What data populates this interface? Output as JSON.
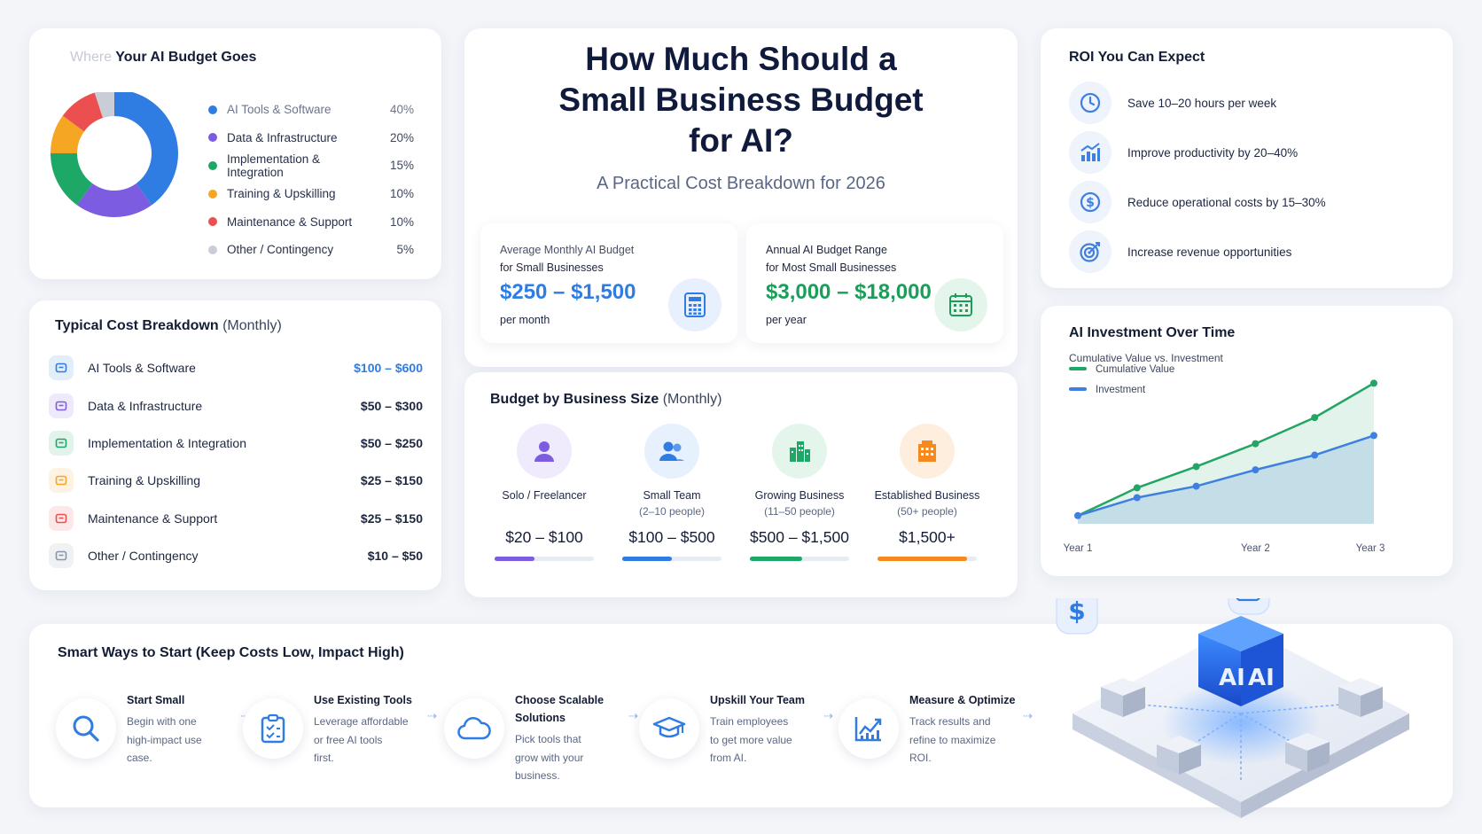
{
  "donut_card": {
    "title_faded": "Where",
    "title": "Your AI Budget Goes"
  },
  "cost_card": {
    "title": "Typical Cost Breakdown",
    "title_suffix": "(Monthly)",
    "rows": [
      {
        "label": "AI Tools & Software",
        "value": "$100 – $600",
        "icon": "toolbox-icon",
        "color": "#2f7ce3"
      },
      {
        "label": "Data & Infrastructure",
        "value": "$50 – $300",
        "icon": "database-icon",
        "color": "#7c5ce0"
      },
      {
        "label": "Implementation & Integration",
        "value": "$50 – $250",
        "icon": "gear-icon",
        "color": "#1ea868"
      },
      {
        "label": "Training & Upskilling",
        "value": "$25 – $150",
        "icon": "lightbulb-icon",
        "color": "#f5a623"
      },
      {
        "label": "Maintenance & Support",
        "value": "$25 – $150",
        "icon": "wrench-icon",
        "color": "#ec4f4f"
      },
      {
        "label": "Other / Contingency",
        "value": "$10 – $50",
        "icon": "bag-icon",
        "color": "#8a93a8"
      }
    ]
  },
  "hero": {
    "title_line1": "How Much Should a",
    "title_line2": "Small Business Budget",
    "title_line3": "for AI?",
    "subtitle": "A Practical Cost Breakdown for 2026",
    "monthly": {
      "label1": "Average Monthly AI Budget",
      "label2": "for Small Businesses",
      "amount": "$250 – $1,500",
      "unit": "per month",
      "icon": "calculator-icon"
    },
    "annual": {
      "label1": "Annual AI Budget Range",
      "label2": "for Most Small Businesses",
      "amount": "$3,000 – $18,000",
      "unit": "per year",
      "icon": "calendar-icon"
    }
  },
  "size_card": {
    "title": "Budget by Business Size",
    "title_suffix": "(Monthly)",
    "sizes": [
      {
        "name": "Solo / Freelancer",
        "sub": "",
        "price": "$20 – $100",
        "fill": 0.4,
        "color": "#7c5ce0",
        "bg": "#efeafc",
        "icon": "person-icon"
      },
      {
        "name": "Small Team",
        "sub": "(2–10 people)",
        "price": "$100 – $500",
        "fill": 0.5,
        "color": "#2f7ce3",
        "bg": "#e7f0fd",
        "icon": "people-icon"
      },
      {
        "name": "Growing Business",
        "sub": "(11–50 people)",
        "price": "$500 – $1,500",
        "fill": 0.53,
        "color": "#1ea868",
        "bg": "#e4f6ec",
        "icon": "buildings-icon"
      },
      {
        "name": "Established Business",
        "sub": "(50+ people)",
        "price": "$1,500+",
        "fill": 0.9,
        "color": "#f5891f",
        "bg": "#fdeede",
        "icon": "office-icon"
      }
    ]
  },
  "roi_card": {
    "title": "ROI You Can Expect",
    "items": [
      {
        "text": "Save 10–20 hours per week",
        "icon": "clock-icon"
      },
      {
        "text": "Improve productivity by 20–40%",
        "icon": "bar-growth-icon"
      },
      {
        "text": "Reduce operational costs by 15–30%",
        "icon": "dollar-icon"
      },
      {
        "text": "Increase revenue opportunities",
        "icon": "target-icon"
      }
    ]
  },
  "line_card": {
    "title": "AI Investment Over Time",
    "subtitle": "Cumulative Value vs. Investment"
  },
  "ways_card": {
    "title": "Smart Ways to Start (Keep Costs Low, Impact High)",
    "steps": [
      {
        "title": "Start Small",
        "desc": [
          "Begin with one",
          "high-impact use",
          "case."
        ],
        "icon": "search-icon"
      },
      {
        "title": "Use Existing Tools",
        "desc": [
          "Leverage affordable",
          "or free AI tools",
          "first."
        ],
        "icon": "clipboard-icon"
      },
      {
        "title": "Choose Scalable Solutions",
        "desc": [
          "Pick tools that",
          "grow with your",
          "business."
        ],
        "icon": "cloud-icon"
      },
      {
        "title": "Upskill Your Team",
        "desc": [
          "Train employees",
          "to get more value",
          "from AI."
        ],
        "icon": "graduation-cap-icon"
      },
      {
        "title": "Measure & Optimize",
        "desc": [
          "Track results and",
          "refine to maximize",
          "ROI."
        ],
        "icon": "line-growth-icon"
      }
    ]
  },
  "illustration": {
    "cube_label": "AI"
  },
  "chart_data": [
    {
      "type": "pie",
      "title": "Where Your AI Budget Goes",
      "categories": [
        "AI Tools & Software",
        "Data & Infrastructure",
        "Implementation & Integration",
        "Training & Upskilling",
        "Maintenance & Support",
        "Other / Contingency"
      ],
      "values": [
        40,
        20,
        15,
        10,
        10,
        5
      ],
      "labels": [
        "40%",
        "20%",
        "15%",
        "10%",
        "10%",
        "5%"
      ],
      "colors": [
        "#2f7ce3",
        "#7c5ce0",
        "#1ea868",
        "#f5a623",
        "#ec4f4f",
        "#c8cdd8"
      ],
      "legend": "right"
    },
    {
      "type": "line",
      "title": "AI Investment Over Time",
      "subtitle": "Cumulative Value vs. Investment",
      "x": [
        "Year 1",
        "",
        "",
        "Year 2",
        "",
        "Year 3"
      ],
      "series": [
        {
          "name": "Cumulative Value",
          "values": [
            0.5,
            2.2,
            3.5,
            4.9,
            6.5,
            8.6
          ],
          "color": "#22a565"
        },
        {
          "name": "Investment",
          "values": [
            0.5,
            1.6,
            2.3,
            3.3,
            4.2,
            5.4
          ],
          "color": "#3f7fe0"
        }
      ],
      "ylim": [
        0,
        9
      ],
      "grid": false,
      "legend": "top-left"
    }
  ]
}
